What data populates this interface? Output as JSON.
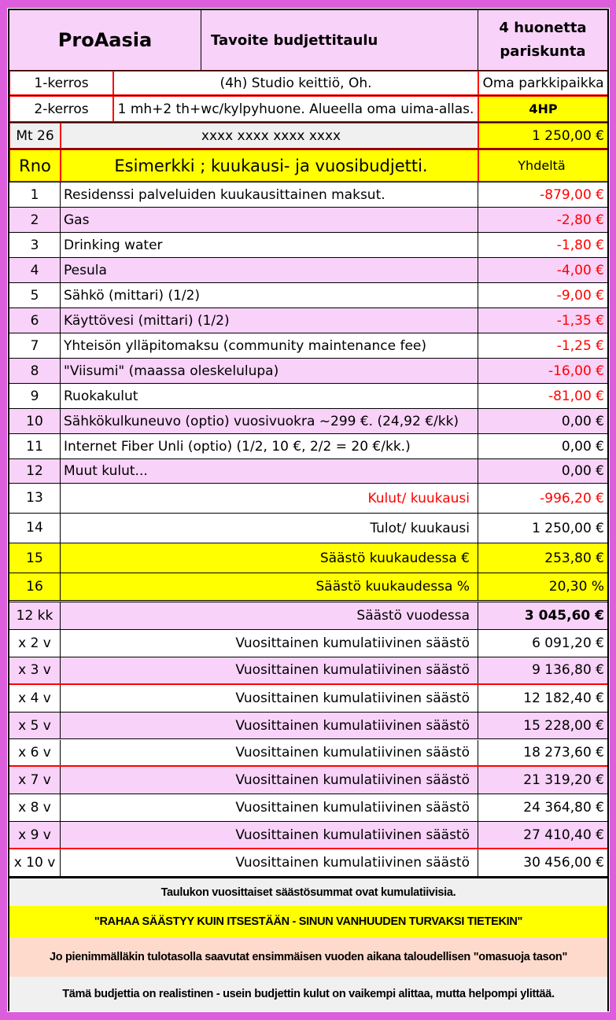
{
  "header": {
    "brand": "ProAasia",
    "title": "Tavoite budjettitaulu",
    "type_line1": "4 huonetta",
    "type_line2": "pariskunta"
  },
  "info": [
    {
      "label": "1-kerros",
      "desc": "(4h) Studio keittiö, Oh.",
      "extra": "Oma parkkipaikka"
    },
    {
      "label": "2-kerros",
      "desc": "1 mh+2 th+wc/kylpyhuone. Alueella oma uima-allas.",
      "extra": "4HP"
    }
  ],
  "income_row": {
    "label": "Mt 26",
    "desc": "xxxx xxxx xxxx xxxx",
    "value": "1 250,00 €"
  },
  "columns": {
    "rno": "Rno",
    "title": "Esimerkki ; kuukausi- ja vuosibudjetti.",
    "value": "Yhdeltä"
  },
  "items": [
    {
      "n": "1",
      "desc": "Residenssi palveluiden kuukausittainen maksut.",
      "value": "-879,00 €"
    },
    {
      "n": "2",
      "desc": "Gas",
      "value": "-2,80 €"
    },
    {
      "n": "3",
      "desc": "Drinking water",
      "value": "-1,80 €"
    },
    {
      "n": "4",
      "desc": "Pesula",
      "value": "-4,00 €"
    },
    {
      "n": "5",
      "desc": "Sähkö  (mittari) (1/2)",
      "value": "-9,00 €"
    },
    {
      "n": "6",
      "desc": "Käyttövesi (mittari) (1/2)",
      "value": "-1,35 €"
    },
    {
      "n": "7",
      "desc": "Yhteisön ylläpitomaksu (community maintenance fee)",
      "value": "-1,25 €"
    },
    {
      "n": "8",
      "desc": "\"Viisumi\" (maassa oleskelulupa)",
      "value": "-16,00 €"
    },
    {
      "n": "9",
      "desc": "Ruokakulut",
      "value": "-81,00 €"
    },
    {
      "n": "10",
      "desc": "Sähkökulkuneuvo (optio) vuosivuokra ~299 €. (24,92 €/kk)",
      "value": "0,00 €"
    },
    {
      "n": "11",
      "desc": "Internet Fiber Unli (optio) (1/2, 10 €, 2/2 = 20 €/kk.)",
      "value": "0,00 €"
    },
    {
      "n": "12",
      "desc": "Muut kulut...",
      "value": "0,00 €"
    }
  ],
  "totals": [
    {
      "n": "13",
      "label": "Kulut/ kuukausi",
      "value": "-996,20 €"
    },
    {
      "n": "14",
      "label": "Tulot/ kuukausi",
      "value": "1 250,00 €"
    },
    {
      "n": "15",
      "label": "Säästö kuukaudessa €",
      "value": "253,80 €"
    },
    {
      "n": "16",
      "label": "Säästö kuukaudessa %",
      "value": "20,30 %"
    }
  ],
  "yearly": [
    {
      "n": "12 kk",
      "label": "Säästö vuodessa",
      "value": "3 045,60 €"
    },
    {
      "n": "x 2 v",
      "label": "Vuosittainen kumulatiivinen säästö",
      "value": "6 091,20 €"
    },
    {
      "n": "x 3 v",
      "label": "Vuosittainen kumulatiivinen säästö",
      "value": "9 136,80 €"
    },
    {
      "n": "x 4 v",
      "label": "Vuosittainen kumulatiivinen säästö",
      "value": "12 182,40 €"
    },
    {
      "n": "x 5 v",
      "label": "Vuosittainen kumulatiivinen säästö",
      "value": "15 228,00 €"
    },
    {
      "n": "x 6 v",
      "label": "Vuosittainen kumulatiivinen säästö",
      "value": "18 273,60 €"
    },
    {
      "n": "x 7 v",
      "label": "Vuosittainen kumulatiivinen säästö",
      "value": "21 319,20 €"
    },
    {
      "n": "x 8 v",
      "label": "Vuosittainen kumulatiivinen säästö",
      "value": "24 364,80 €"
    },
    {
      "n": "x 9 v",
      "label": "Vuosittainen kumulatiivinen säästö",
      "value": "27 410,40 €"
    },
    {
      "n": "x 10 v",
      "label": "Vuosittainen kumulatiivinen säästö",
      "value": "30 456,00 €"
    }
  ],
  "footer": {
    "note": "Taulukon vuosittaiset säästösummat ovat kumulatiivisia.",
    "slogan": "\"RAHAA SÄÄSTYY KUIN ITSESTÄÄN - SINUN VANHUUDEN TURVAKSI TIETEKIN\"",
    "info": "Jo pienimmälläkin tulotasolla saavutat ensimmäisen vuoden aikana taloudellisen \"omasuoja tason\"",
    "disclaimer": "Tämä budjettia on realistinen - usein budjettin kulut on vaikempi alittaa, mutta helpompi ylittää."
  },
  "colors": {
    "border": "#dc5edc",
    "pink": "#f8d2f8",
    "yellow": "#ffff00",
    "negative": "#ff0000"
  }
}
